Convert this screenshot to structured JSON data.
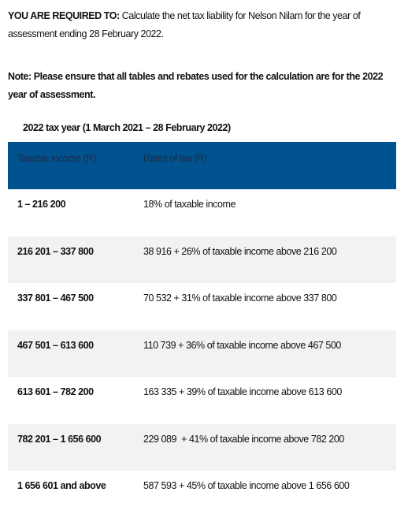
{
  "intro": {
    "label": "YOU ARE REQUIRED TO:",
    "text": "Calculate the net tax liability for Nelson Nilam for the year of assessment ending 28 February 2022."
  },
  "note": "Note: Please ensure that all tables and rebates used for the calculation are for the 2022 year of assessment.",
  "table": {
    "caption": "2022 tax year (1 March 2021 – 28 February 2022)",
    "header": [
      "Taxable income (R)",
      "Rates of tax (R)"
    ],
    "rows": [
      [
        "1 – 216 200",
        "18% of taxable income"
      ],
      [
        "216 201 – 337 800",
        "38 916 + 26% of taxable income above 216 200"
      ],
      [
        "337 801 – 467 500",
        "70 532 + 31% of taxable income above 337 800"
      ],
      [
        "467 501 – 613 600",
        "110 739 + 36% of taxable income above 467 500"
      ],
      [
        "613 601 – 782 200",
        "163 335 + 39% of taxable income above 613 600"
      ],
      [
        "782 201 – 1 656 600",
        "229 089  + 41% of taxable income above 782 200"
      ],
      [
        "1 656 601 and above",
        "587 593 + 45% of taxable income above 1 656 600"
      ]
    ]
  }
}
